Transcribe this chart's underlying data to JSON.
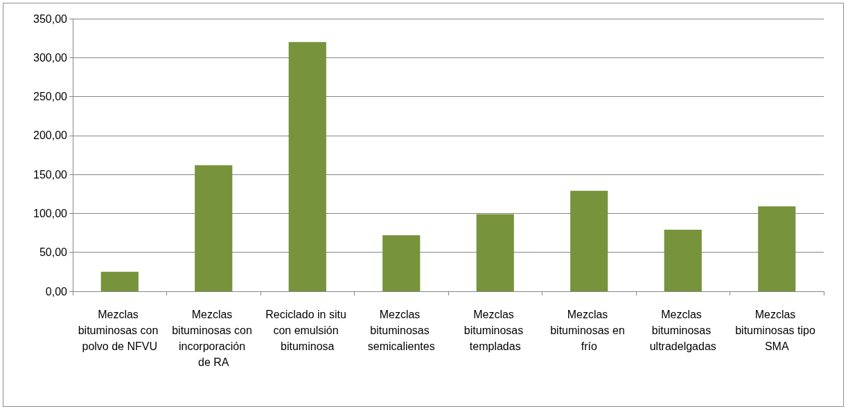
{
  "chart_data": {
    "type": "bar",
    "categories": [
      "Mezclas bituminosas con polvo de NFVU",
      "Mezclas bituminosas con incorporación de RA",
      "Reciclado in situ con emulsión bituminosa",
      "Mezclas bituminosas semicalientes",
      "Mezclas bituminosas templadas",
      "Mezclas bituminosas en frío",
      "Mezclas bituminosas ultradelgadas",
      "Mezclas bituminosas tipo SMA"
    ],
    "values": [
      25,
      162,
      320,
      72,
      99,
      129,
      79,
      109
    ],
    "color": "#77933c",
    "ylim": [
      0,
      350
    ],
    "yticks": [
      {
        "value": 0,
        "label": "0,00"
      },
      {
        "value": 50,
        "label": "50,00"
      },
      {
        "value": 100,
        "label": "100,00"
      },
      {
        "value": 150,
        "label": "150,00"
      },
      {
        "value": 200,
        "label": "200,00"
      },
      {
        "value": 250,
        "label": "250,00"
      },
      {
        "value": 300,
        "label": "300,00"
      },
      {
        "value": 350,
        "label": "350,00"
      }
    ],
    "grid": "y"
  }
}
